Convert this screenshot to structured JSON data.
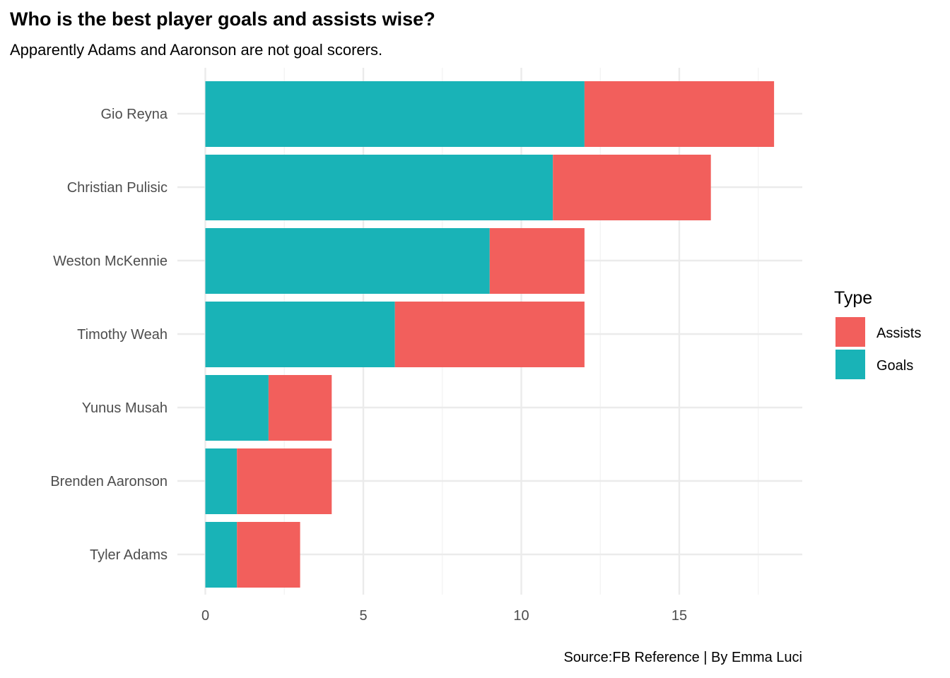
{
  "title": "Who is the best player goals and assists wise?",
  "subtitle": "Apparently Adams and Aaronson are not goal scorers.",
  "caption": "Source:FB Reference | By Emma Luci",
  "chart_data": {
    "type": "bar",
    "orientation": "horizontal",
    "stacked": true,
    "categories": [
      "Gio Reyna",
      "Christian Pulisic",
      "Weston McKennie",
      "Timothy Weah",
      "Yunus Musah",
      "Brenden Aaronson",
      "Tyler Adams"
    ],
    "series": [
      {
        "name": "Goals",
        "color": "#19b3b7",
        "values": [
          12,
          11,
          9,
          6,
          2,
          1,
          1
        ]
      },
      {
        "name": "Assists",
        "color": "#f25f5c",
        "values": [
          6,
          5,
          3,
          6,
          2,
          3,
          2
        ]
      }
    ],
    "xlim": [
      0,
      19
    ],
    "xticks": [
      0,
      5,
      10,
      15
    ],
    "grid": true,
    "legend": {
      "title": "Type",
      "position": "right",
      "entries": [
        {
          "label": "Assists",
          "color": "#f25f5c"
        },
        {
          "label": "Goals",
          "color": "#19b3b7"
        }
      ]
    }
  }
}
